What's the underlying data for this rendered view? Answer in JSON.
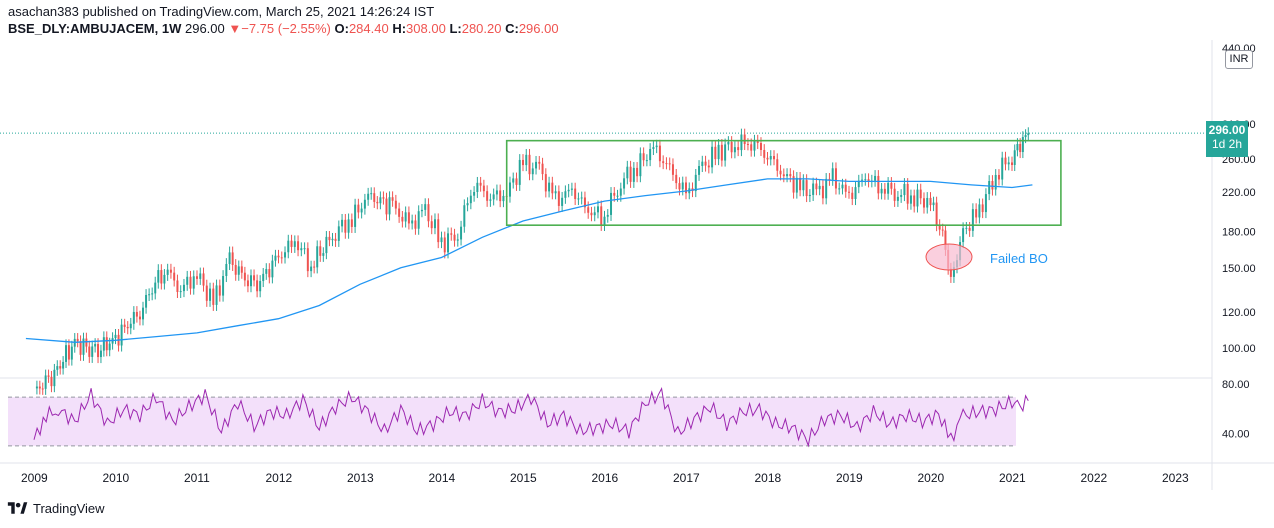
{
  "header": {
    "line1": "asachan383 published on TradingView.com, March 25, 2021 14:26:24 IST",
    "symbol": "BSE_DLY:AMBUJACEM, 1W",
    "last": "296.00",
    "change": "▼−7.75 (−2.55%)",
    "o_label": "O:",
    "o_value": "284.40",
    "h_label": "H:",
    "h_value": "308.00",
    "l_label": "L:",
    "l_value": "280.20",
    "c_label": "C:",
    "c_value": "296.00"
  },
  "currency_button": "INR",
  "price_tag": {
    "price": "296.00",
    "time": "1d 2h"
  },
  "annotation": "Failed BO",
  "footer": {
    "brand": "TradingView"
  },
  "colors": {
    "up": "#26a69a",
    "down": "#ef5350",
    "ma": "#2196f3",
    "rsi": "#9c27b0",
    "box": "#4caf50",
    "rsi_band": "#f3e0fa",
    "circle": "#f8bbd0"
  },
  "chart_data": {
    "type": "line",
    "scale": "log",
    "price_axis_ticks": [
      "310.00",
      "260.00",
      "220.00",
      "180.00",
      "150.00",
      "120.00",
      "100.00",
      "80.00"
    ],
    "price_axis_partial_tick": "440.00",
    "rsi_axis_ticks": [
      "40.00"
    ],
    "x_ticks": [
      "2009",
      "2010",
      "2011",
      "2012",
      "2013",
      "2014",
      "2015",
      "2016",
      "2017",
      "2018",
      "2019",
      "2020",
      "2021",
      "2022",
      "2023"
    ],
    "last_price": 296,
    "range_box": {
      "start": 2014.8,
      "end": 2021.6,
      "high": 285,
      "low": 186
    },
    "price_series": {
      "name": "",
      "x": [
        2009.0,
        2009.25,
        2009.5,
        2009.75,
        2010.0,
        2010.3,
        2010.6,
        2010.8,
        2011.0,
        2011.2,
        2011.4,
        2011.7,
        2012.0,
        2012.2,
        2012.4,
        2012.7,
        2012.9,
        2013.1,
        2013.4,
        2013.6,
        2013.8,
        2014.0,
        2014.2,
        2014.4,
        2014.6,
        2014.8,
        2015.0,
        2015.2,
        2015.4,
        2015.6,
        2015.8,
        2016.0,
        2016.2,
        2016.4,
        2016.6,
        2016.8,
        2017.0,
        2017.2,
        2017.4,
        2017.6,
        2017.8,
        2018.0,
        2018.2,
        2018.4,
        2018.6,
        2018.8,
        2019.0,
        2019.2,
        2019.4,
        2019.6,
        2019.8,
        2020.0,
        2020.15,
        2020.25,
        2020.4,
        2020.6,
        2020.8,
        2021.0,
        2021.1,
        2021.2
      ],
      "y": [
        80,
        88,
        103,
        98,
        105,
        120,
        150,
        135,
        145,
        125,
        155,
        135,
        158,
        172,
        152,
        180,
        192,
        215,
        205,
        185,
        200,
        170,
        178,
        230,
        215,
        218,
        255,
        245,
        210,
        222,
        200,
        195,
        232,
        250,
        275,
        245,
        215,
        250,
        270,
        280,
        285,
        265,
        240,
        225,
        218,
        235,
        215,
        238,
        225,
        220,
        215,
        208,
        175,
        140,
        180,
        200,
        240,
        265,
        278,
        296
      ]
    },
    "ma_series": {
      "name": "",
      "x": [
        2008.9,
        2009.5,
        2010.0,
        2010.5,
        2011.0,
        2011.5,
        2012.0,
        2012.5,
        2013.0,
        2013.5,
        2014.0,
        2014.5,
        2015.0,
        2015.5,
        2016.0,
        2016.5,
        2017.0,
        2017.5,
        2018.0,
        2018.5,
        2019.0,
        2019.5,
        2020.0,
        2020.5,
        2021.0,
        2021.25
      ],
      "y": [
        105,
        103,
        104,
        106,
        108,
        112,
        116,
        124,
        138,
        150,
        158,
        175,
        190,
        200,
        210,
        216,
        221,
        228,
        235,
        235,
        232,
        232,
        232,
        228,
        225,
        228
      ]
    },
    "rsi_series": {
      "name": "",
      "x": [
        2009.0,
        2009.15,
        2009.3,
        2009.5,
        2009.7,
        2009.9,
        2010.1,
        2010.3,
        2010.5,
        2010.7,
        2010.9,
        2011.1,
        2011.3,
        2011.5,
        2011.7,
        2011.9,
        2012.1,
        2012.3,
        2012.5,
        2012.7,
        2012.9,
        2013.1,
        2013.3,
        2013.5,
        2013.7,
        2013.9,
        2014.1,
        2014.3,
        2014.5,
        2014.7,
        2014.9,
        2015.1,
        2015.3,
        2015.5,
        2015.7,
        2015.9,
        2016.1,
        2016.3,
        2016.5,
        2016.7,
        2016.9,
        2017.1,
        2017.3,
        2017.5,
        2017.7,
        2017.9,
        2018.1,
        2018.3,
        2018.5,
        2018.7,
        2018.9,
        2019.1,
        2019.3,
        2019.5,
        2019.7,
        2019.9,
        2020.1,
        2020.25,
        2020.4,
        2020.6,
        2020.8,
        2021.0,
        2021.1,
        2021.2
      ],
      "y": [
        35,
        55,
        60,
        50,
        72,
        48,
        60,
        55,
        70,
        50,
        62,
        72,
        42,
        66,
        46,
        58,
        55,
        68,
        45,
        62,
        70,
        58,
        42,
        60,
        42,
        48,
        58,
        55,
        67,
        58,
        60,
        70,
        48,
        55,
        42,
        45,
        48,
        42,
        65,
        73,
        40,
        52,
        62,
        48,
        58,
        60,
        48,
        45,
        35,
        52,
        55,
        45,
        58,
        48,
        55,
        50,
        56,
        35,
        55,
        58,
        60,
        66,
        62,
        67
      ],
      "levels": [
        70,
        30
      ]
    }
  }
}
